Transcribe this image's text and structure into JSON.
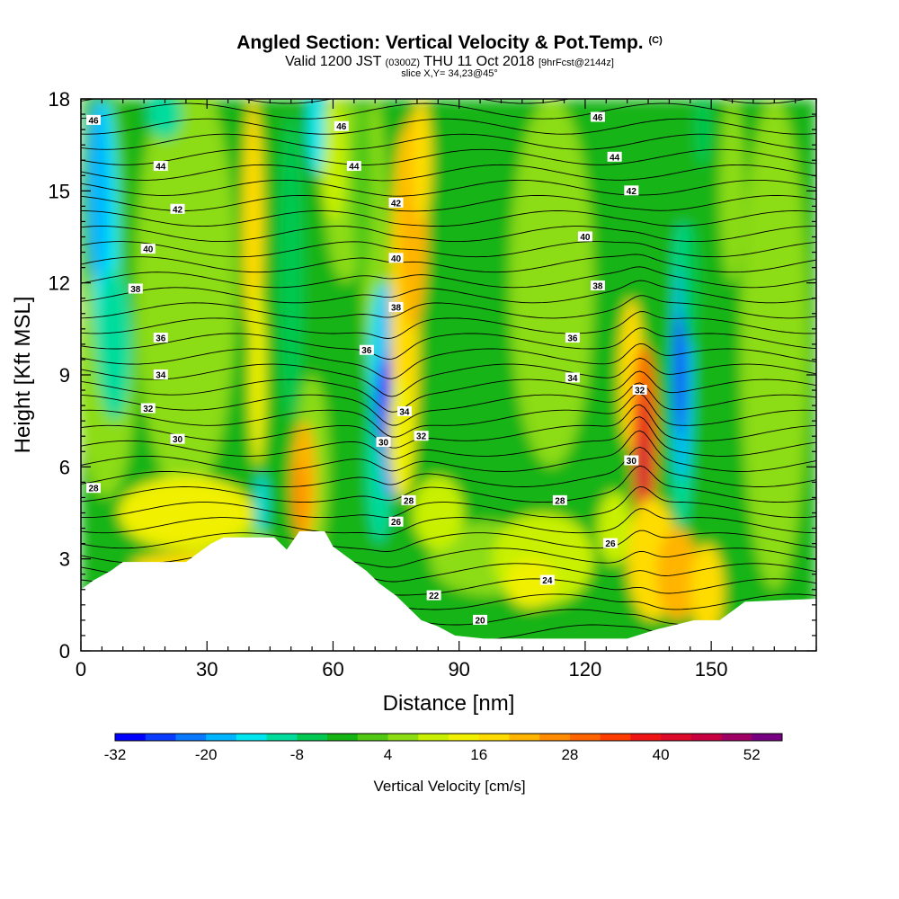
{
  "header": {
    "title_main": "Angled Section: Vertical Velocity & Pot.Temp.",
    "title_mark": "(C)",
    "valid_a": "Valid 1200 JST",
    "valid_b": "(0300Z)",
    "valid_c": "THU 11 Oct 2018",
    "valid_d": "[9hrFcst@2144z]",
    "slice": "slice X,Y= 34,23@45°"
  },
  "chart_data": {
    "type": "heatmap",
    "xlabel": "Distance [nm]",
    "ylabel": "Height [Kft MSL]",
    "xlim": [
      0,
      175
    ],
    "ylim": [
      0,
      18
    ],
    "x_ticks": [
      "0",
      "30",
      "60",
      "90",
      "120",
      "150"
    ],
    "y_ticks": [
      "0",
      "3",
      "6",
      "9",
      "12",
      "15",
      "18"
    ],
    "colorbar": {
      "label": "Vertical Velocity [cm/s]",
      "tick_labels": [
        "-32",
        "-20",
        "-8",
        "4",
        "16",
        "28",
        "40",
        "52"
      ],
      "levels": [
        -32,
        -28,
        -24,
        -20,
        -16,
        -12,
        -8,
        -4,
        0,
        4,
        8,
        12,
        16,
        20,
        24,
        28,
        32,
        36,
        40,
        44,
        48,
        52,
        56
      ],
      "colors": [
        "#0000ff",
        "#0a3cff",
        "#0a78ff",
        "#00b4ff",
        "#00e6f0",
        "#00dc9c",
        "#00c850",
        "#14b414",
        "#50c814",
        "#8cdc14",
        "#c8f000",
        "#f0f000",
        "#ffdc00",
        "#ffb400",
        "#ff8c00",
        "#ff6400",
        "#ff3c00",
        "#f01414",
        "#dc0a28",
        "#c80040",
        "#a00064",
        "#780082"
      ]
    },
    "terrain_kft": [
      [
        0,
        2.0
      ],
      [
        3,
        2.3
      ],
      [
        7,
        2.6
      ],
      [
        10,
        2.9
      ],
      [
        25,
        2.9
      ],
      [
        28,
        3.2
      ],
      [
        31,
        3.5
      ],
      [
        34,
        3.7
      ],
      [
        46,
        3.7
      ],
      [
        49,
        3.3
      ],
      [
        52,
        3.9
      ],
      [
        58,
        3.9
      ],
      [
        60,
        3.4
      ],
      [
        64,
        3.0
      ],
      [
        68,
        2.6
      ],
      [
        71,
        2.2
      ],
      [
        75,
        1.8
      ],
      [
        78,
        1.4
      ],
      [
        81,
        1.0
      ],
      [
        85,
        0.8
      ],
      [
        89,
        0.5
      ],
      [
        96,
        0.4
      ],
      [
        130,
        0.4
      ],
      [
        137,
        0.7
      ],
      [
        146,
        1.0
      ],
      [
        152,
        1.0
      ],
      [
        155,
        1.3
      ],
      [
        158,
        1.6
      ],
      [
        175,
        1.7
      ]
    ],
    "theta_contour_labels": [
      {
        "text": "46",
        "x": 3,
        "y": 17.3
      },
      {
        "text": "44",
        "x": 19,
        "y": 15.8
      },
      {
        "text": "42",
        "x": 23,
        "y": 14.4
      },
      {
        "text": "40",
        "x": 16,
        "y": 13.1
      },
      {
        "text": "38",
        "x": 13,
        "y": 11.8
      },
      {
        "text": "36",
        "x": 19,
        "y": 10.2
      },
      {
        "text": "34",
        "x": 19,
        "y": 9.0
      },
      {
        "text": "32",
        "x": 16,
        "y": 7.9
      },
      {
        "text": "30",
        "x": 23,
        "y": 6.9
      },
      {
        "text": "28",
        "x": 3,
        "y": 5.3
      },
      {
        "text": "46",
        "x": 62,
        "y": 17.1
      },
      {
        "text": "44",
        "x": 65,
        "y": 15.8
      },
      {
        "text": "42",
        "x": 75,
        "y": 14.6
      },
      {
        "text": "40",
        "x": 75,
        "y": 12.8
      },
      {
        "text": "38",
        "x": 75,
        "y": 11.2
      },
      {
        "text": "36",
        "x": 68,
        "y": 9.8
      },
      {
        "text": "34",
        "x": 77,
        "y": 7.8
      },
      {
        "text": "32",
        "x": 81,
        "y": 7.0
      },
      {
        "text": "30",
        "x": 72,
        "y": 6.8
      },
      {
        "text": "28",
        "x": 78,
        "y": 4.9
      },
      {
        "text": "26",
        "x": 75,
        "y": 4.2
      },
      {
        "text": "22",
        "x": 84,
        "y": 1.8
      },
      {
        "text": "20",
        "x": 95,
        "y": 1.0
      },
      {
        "text": "46",
        "x": 123,
        "y": 17.4
      },
      {
        "text": "44",
        "x": 127,
        "y": 16.1
      },
      {
        "text": "42",
        "x": 131,
        "y": 15.0
      },
      {
        "text": "40",
        "x": 120,
        "y": 13.5
      },
      {
        "text": "38",
        "x": 123,
        "y": 11.9
      },
      {
        "text": "36",
        "x": 117,
        "y": 10.2
      },
      {
        "text": "34",
        "x": 117,
        "y": 8.9
      },
      {
        "text": "32",
        "x": 133,
        "y": 8.5
      },
      {
        "text": "30",
        "x": 131,
        "y": 6.2
      },
      {
        "text": "28",
        "x": 114,
        "y": 4.9
      },
      {
        "text": "26",
        "x": 126,
        "y": 3.5
      },
      {
        "text": "24",
        "x": 111,
        "y": 2.3
      }
    ]
  }
}
